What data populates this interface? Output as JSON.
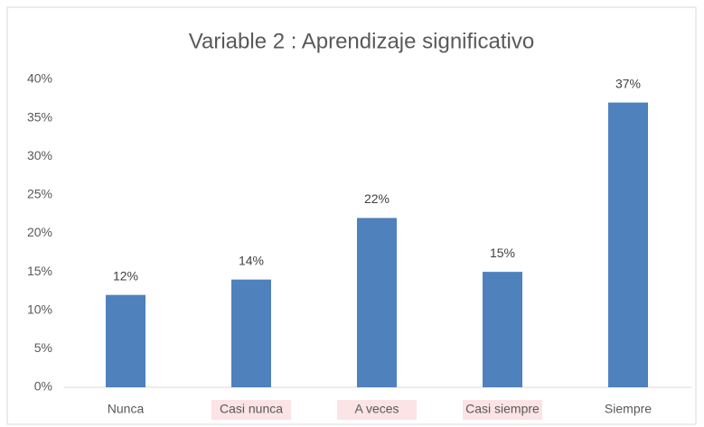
{
  "chart_data": {
    "type": "bar",
    "title": "Variable 2 : Aprendizaje significativo",
    "categories": [
      "Nunca",
      "Casi nunca",
      "A veces",
      "Casi siempre",
      "Siempre"
    ],
    "values": [
      12,
      14,
      22,
      15,
      37
    ],
    "value_labels": [
      "12%",
      "14%",
      "22%",
      "15%",
      "37%"
    ],
    "color": "#4f81bd",
    "ylim": [
      0,
      40
    ],
    "yticks": [
      {
        "value": 0,
        "label": "0%"
      },
      {
        "value": 5,
        "label": "5%"
      },
      {
        "value": 10,
        "label": "10%"
      },
      {
        "value": 15,
        "label": "15%"
      },
      {
        "value": 20,
        "label": "20%"
      },
      {
        "value": 25,
        "label": "25%"
      },
      {
        "value": 30,
        "label": "30%"
      },
      {
        "value": 35,
        "label": "35%"
      },
      {
        "value": 40,
        "label": "40%"
      }
    ],
    "grid": false
  }
}
